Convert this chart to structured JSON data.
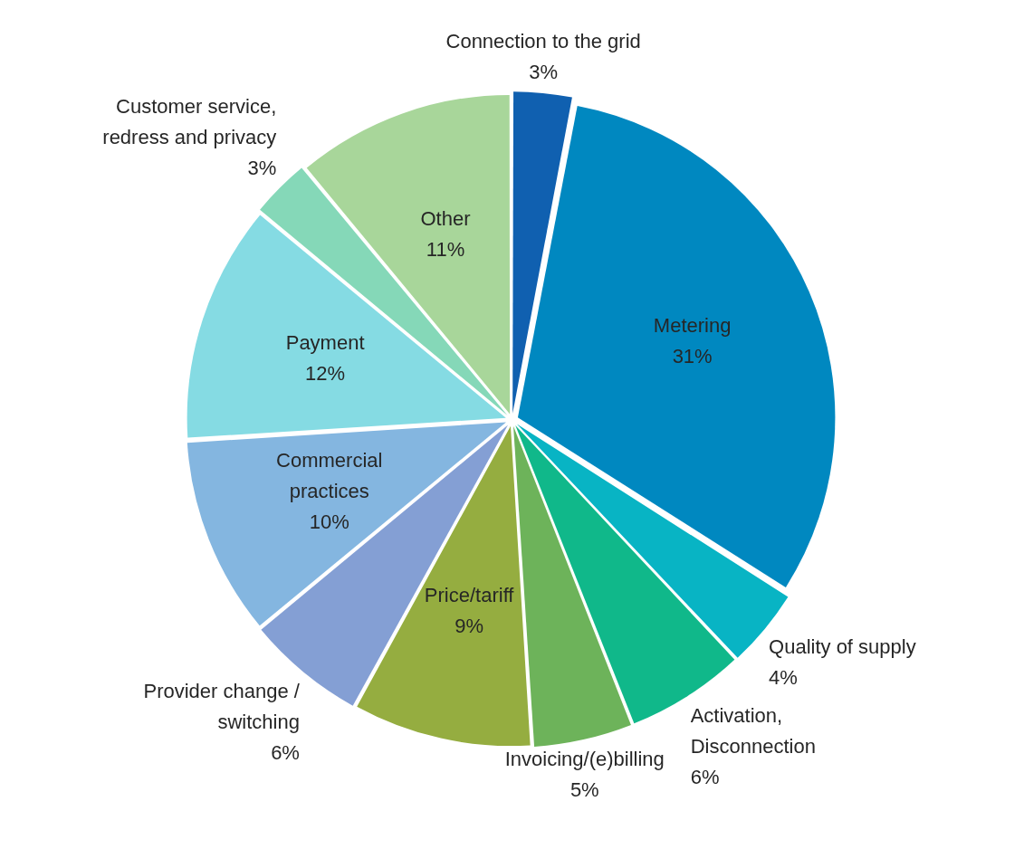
{
  "chart_data": {
    "type": "pie",
    "categories": [
      "Connection to the grid",
      "Metering",
      "Quality of supply",
      "Activation, Disconnection",
      "Invoicing/(e)billing",
      "Price/tariff",
      "Provider change / switching",
      "Commercial practices",
      "Payment",
      "Customer service, redress and privacy",
      "Other"
    ],
    "values": [
      3,
      31,
      4,
      6,
      5,
      9,
      6,
      10,
      12,
      3,
      11
    ],
    "value_labels": [
      "3%",
      "31%",
      "4%",
      "6%",
      "5%",
      "9%",
      "6%",
      "10%",
      "12%",
      "3%",
      "11%"
    ],
    "colors": [
      "#1060b0",
      "#0088c0",
      "#08b4c4",
      "#10b88a",
      "#6db35a",
      "#95ad40",
      "#849fd4",
      "#84b6e0",
      "#85dbe3",
      "#85d8b8",
      "#a8d69a"
    ],
    "legend": false
  }
}
